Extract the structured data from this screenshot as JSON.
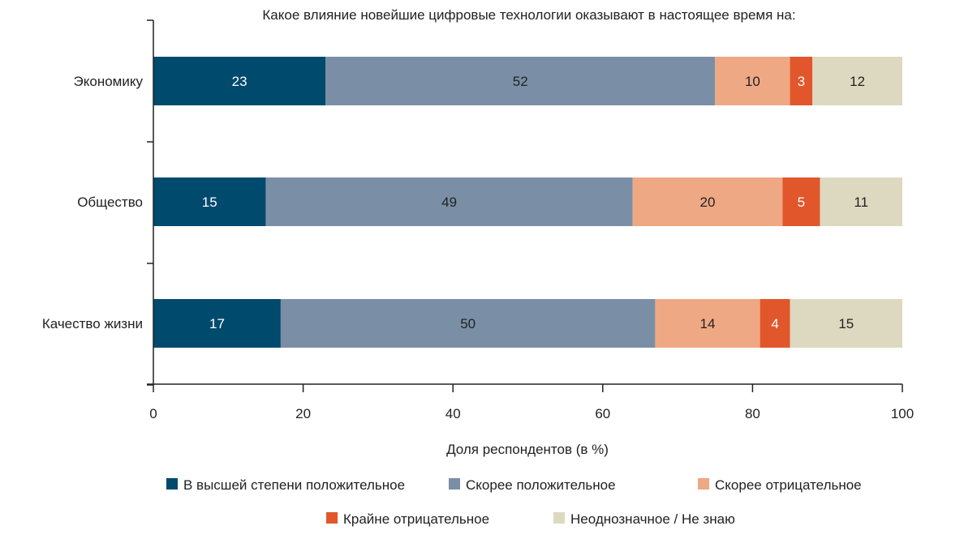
{
  "chart_data": {
    "type": "bar",
    "orientation": "horizontal-stacked",
    "title": "Какое влияние новейшие цифровые технологии оказывают в настоящее время на:",
    "xlabel": "Доля респондентов (в %)",
    "ylabel": "",
    "xlim": [
      0,
      100
    ],
    "xticks": [
      "0",
      "20",
      "40",
      "60",
      "80",
      "100"
    ],
    "categories": [
      "Экономику",
      "Общество",
      "Качество жизни"
    ],
    "series": [
      {
        "name": "В высшей степени положительное",
        "color": "#004a6e",
        "label_color": "#ffffff",
        "values": [
          23,
          15,
          17
        ]
      },
      {
        "name": "Скорее положительное",
        "color": "#7a8fa6",
        "label_color": "#222222",
        "values": [
          52,
          49,
          50
        ]
      },
      {
        "name": "Скорее отрицательное",
        "color": "#efa884",
        "label_color": "#222222",
        "values": [
          10,
          20,
          14
        ]
      },
      {
        "name": "Крайне отрицательное",
        "color": "#e2562b",
        "label_color": "#ffffff",
        "values": [
          3,
          5,
          4
        ]
      },
      {
        "name": "Неоднозначное / Не знаю",
        "color": "#ddd9c0",
        "label_color": "#222222",
        "values": [
          12,
          11,
          15
        ]
      }
    ],
    "grid": false,
    "legend_position": "bottom"
  }
}
